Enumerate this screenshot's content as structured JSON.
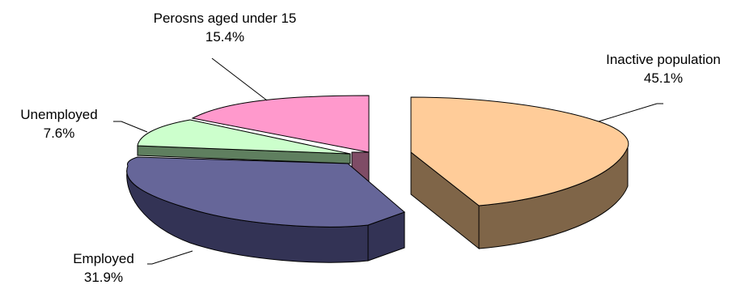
{
  "chart_data": {
    "type": "pie",
    "title": "",
    "three_d": true,
    "exploded": true,
    "slices": [
      {
        "name": "Inactive population",
        "value_label": "45.1%",
        "value": 45.1,
        "top_color": "#FFCC99",
        "side_color": "#7F6548"
      },
      {
        "name": "Employed",
        "value_label": "31.9%",
        "value": 31.9,
        "top_color": "#666699",
        "side_color": "#333355"
      },
      {
        "name": "Unemployed",
        "value_label": "7.6%",
        "value": 7.6,
        "top_color": "#CCFFCC",
        "side_color": "#5F7F5F"
      },
      {
        "name": "Perosns aged under 15",
        "value_label": "15.4%",
        "value": 15.4,
        "top_color": "#FF99CC",
        "side_color": "#7F4C66"
      }
    ]
  }
}
